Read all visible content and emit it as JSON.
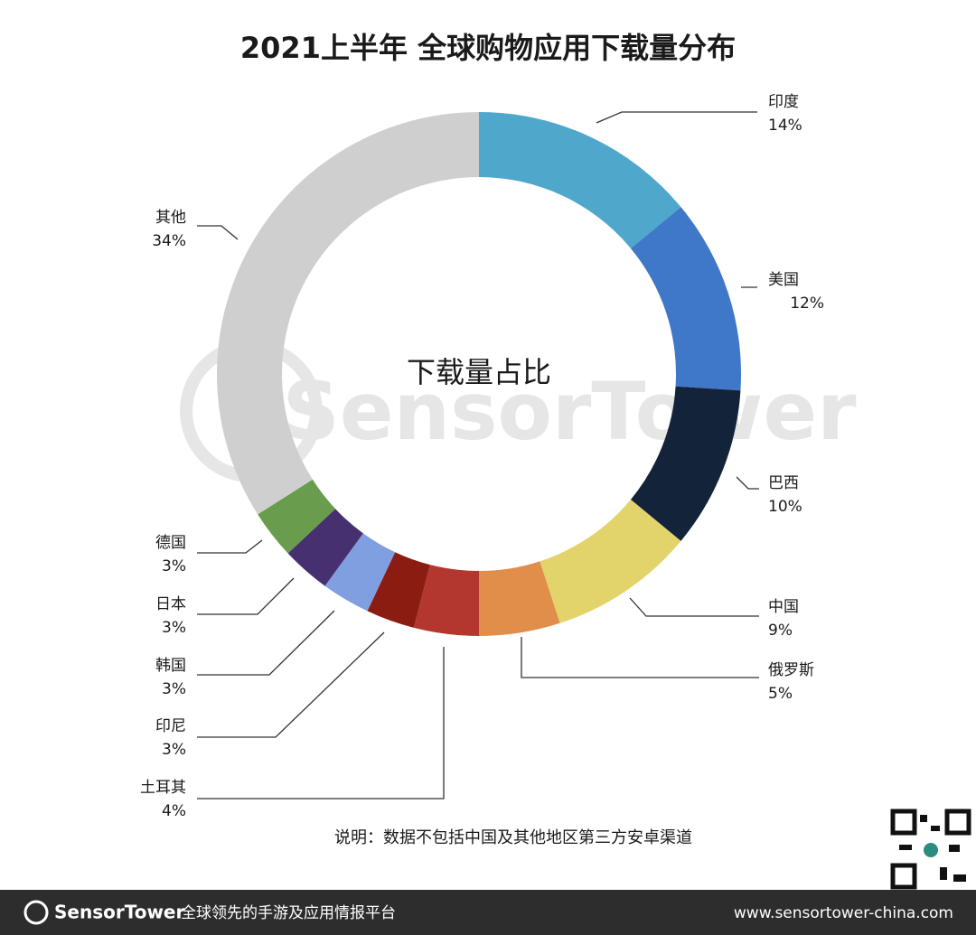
{
  "chart_data": {
    "type": "donut",
    "title": "2021上半年 全球购物应用下载量分布",
    "center_label": "下载量占比",
    "categories": [
      "印度",
      "美国",
      "巴西",
      "中国",
      "俄罗斯",
      "土耳其",
      "印尼",
      "韩国",
      "日本",
      "德国",
      "其他"
    ],
    "values": [
      14,
      12,
      10,
      9,
      5,
      4,
      3,
      3,
      3,
      3,
      34
    ],
    "value_labels": [
      "14%",
      "12%",
      "10%",
      "9%",
      "5%",
      "4%",
      "3%",
      "3%",
      "3%",
      "3%",
      "34%"
    ],
    "colors": [
      "#4fa8cc",
      "#3f78c9",
      "#13233a",
      "#e2d36a",
      "#e08e4a",
      "#b3372e",
      "#8b1c12",
      "#7f9fe0",
      "#46306f",
      "#6a9c4d",
      "#cfcfcf"
    ],
    "note": "说明：数据不包括中国及其他地区第三方安卓渠道"
  },
  "footer": {
    "brand": "SensorTower",
    "slogan": "全球领先的手游及应用情报平台",
    "url": "www.sensortower-china.com"
  }
}
